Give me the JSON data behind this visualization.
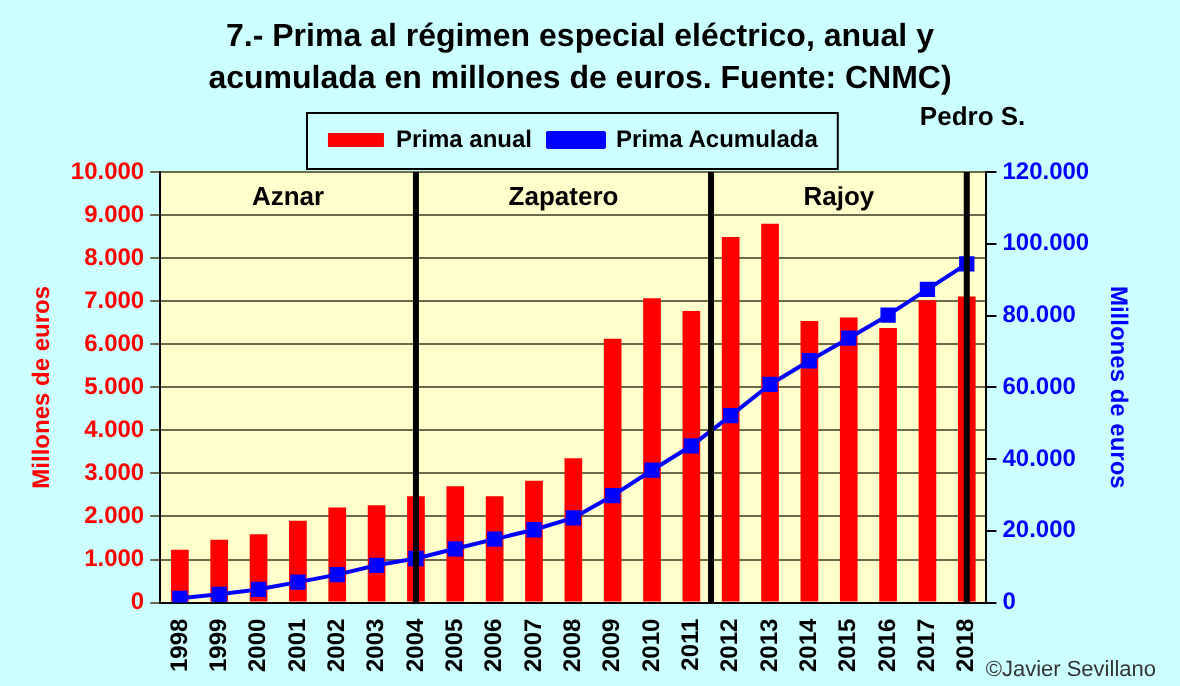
{
  "chart_data": {
    "type": "bar",
    "title": "7.- Prima al régimen especial  eléctrico, anual y acumulada en millones de euros. Fuente: CNMC)",
    "ylabel": "Millones de euros",
    "y2label": "Millones de euros",
    "x": [
      1998,
      1999,
      2000,
      2001,
      2002,
      2003,
      2004,
      2005,
      2006,
      2007,
      2008,
      2009,
      2010,
      2011,
      2012,
      2013,
      2014,
      2015,
      2016,
      2017,
      2018
    ],
    "xlim": [
      1997.5,
      2018.5
    ],
    "xticks": [
      1998,
      1999,
      2000,
      2001,
      2002,
      2003,
      2004,
      2005,
      2006,
      2007,
      2008,
      2009,
      2010,
      2011,
      2012,
      2013,
      2014,
      2015,
      2016,
      2017,
      2018
    ],
    "series": [
      {
        "name": "Prima anual",
        "color": "#ff0000",
        "values": [
          1230,
          1460,
          1590,
          1900,
          2210,
          2260,
          2470,
          2700,
          2470,
          2830,
          3350,
          6130,
          7070,
          6770,
          8490,
          8800,
          6540,
          6620,
          6380,
          7020,
          7110
        ]
      },
      {
        "name": "Prima Acumulada",
        "type": "line",
        "axis": "y2",
        "color": "#0000ff",
        "marker": "square",
        "line_style": "solid",
        "values": [
          1200,
          2300,
          3700,
          5700,
          7800,
          10400,
          12300,
          15000,
          17700,
          20300,
          23600,
          29800,
          36900,
          43700,
          52100,
          60800,
          67400,
          73700,
          80100,
          87300,
          94400
        ]
      }
    ],
    "ylim": [
      0,
      10000
    ],
    "yticks": [
      0,
      {
        "value": 1000,
        "label": "1.000"
      },
      {
        "value": 2000,
        "label": "2.000"
      },
      {
        "value": 3000,
        "label": "3.000"
      },
      {
        "value": 4000,
        "label": "4.000"
      },
      {
        "value": 5000,
        "label": "5.000"
      },
      {
        "value": 6000,
        "label": "6.000"
      },
      {
        "value": 7000,
        "label": "7.000"
      },
      {
        "value": 8000,
        "label": "8.000"
      },
      {
        "value": 9000,
        "label": "9.000"
      },
      {
        "value": 10000,
        "label": "10.000"
      }
    ],
    "y2lim": [
      0,
      120000
    ],
    "y2ticks": [
      0,
      {
        "value": 20000,
        "label": "20.000"
      },
      {
        "value": 40000,
        "label": "40.000"
      },
      {
        "value": 60000,
        "label": "60.000"
      },
      {
        "value": 80000,
        "label": "80.000"
      },
      {
        "value": 100000,
        "label": "100.000"
      },
      {
        "value": 120000,
        "label": "120.000"
      }
    ],
    "grid": "y",
    "legend": "top",
    "ref_lines": [
      {
        "axis": "x",
        "value": 2004,
        "color": "#000000"
      },
      {
        "axis": "x",
        "value": 2011.5,
        "color": "#000000"
      },
      {
        "axis": "x",
        "value": 2018,
        "color": "#000000"
      }
    ],
    "bands": [
      {
        "axis": "x",
        "from": 1997.5,
        "to": 2004,
        "label": "Aznar",
        "color": "#ffffcc"
      },
      {
        "axis": "x",
        "from": 2004,
        "to": 2011.5,
        "label": "Zapatero",
        "color": "#ffffcc"
      },
      {
        "axis": "x",
        "from": 2011.5,
        "to": 2018,
        "label": "Rajoy",
        "color": "#ffffcc"
      },
      {
        "axis": "x",
        "from": 2018,
        "to": 2018.5,
        "label": "Pedro S.",
        "color": "#ffffcc"
      }
    ],
    "annotations": [
      "©Javier Sevillano"
    ]
  }
}
